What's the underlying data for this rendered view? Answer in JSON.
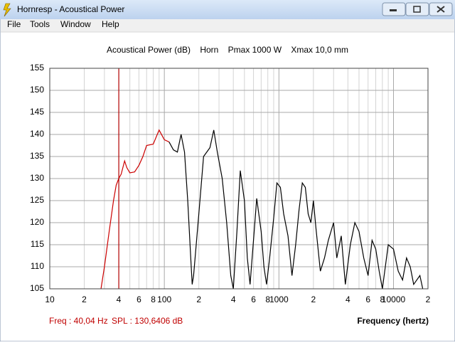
{
  "window": {
    "title": "Hornresp - Acoustical Power",
    "menu": [
      "File",
      "Tools",
      "Window",
      "Help"
    ]
  },
  "chart_data": {
    "type": "line",
    "title": "Acoustical Power (dB)    Horn    Pmax 1000 W    Xmax 10,0 mm",
    "x_label": "Frequency (hertz)",
    "x_log": true,
    "xlim": [
      10,
      20000
    ],
    "ylim": [
      105,
      155
    ],
    "xticks": [
      {
        "value": 10,
        "label": "10"
      },
      {
        "value": 20,
        "label": "2"
      },
      {
        "value": 40,
        "label": "4"
      },
      {
        "value": 60,
        "label": "6"
      },
      {
        "value": 80,
        "label": "8"
      },
      {
        "value": 100,
        "label": "100"
      },
      {
        "value": 200,
        "label": "2"
      },
      {
        "value": 400,
        "label": "4"
      },
      {
        "value": 600,
        "label": "6"
      },
      {
        "value": 800,
        "label": "8"
      },
      {
        "value": 1000,
        "label": "1000"
      },
      {
        "value": 2000,
        "label": "2"
      },
      {
        "value": 4000,
        "label": "4"
      },
      {
        "value": 6000,
        "label": "6"
      },
      {
        "value": 8000,
        "label": "8"
      },
      {
        "value": 10000,
        "label": "10000"
      },
      {
        "value": 20000,
        "label": "2"
      }
    ],
    "minor_xticks": [
      30,
      50,
      70,
      90,
      300,
      500,
      700,
      900,
      3000,
      5000,
      7000,
      9000
    ],
    "yticks": [
      105,
      110,
      115,
      120,
      125,
      130,
      135,
      140,
      145,
      150,
      155
    ],
    "grid": true,
    "cursor": {
      "x": 40.04,
      "color": "#b00000"
    },
    "readout": [
      "Freq : 40,04 Hz",
      "SPL : 130,6406 dB"
    ],
    "series": [
      {
        "color": "#cc0000",
        "x": [
          28,
          30,
          33,
          36,
          38,
          40,
          42,
          45,
          47,
          50,
          55,
          60,
          65,
          70,
          80,
          90,
          100,
          110
        ],
        "values": [
          105,
          110,
          118,
          125,
          128.5,
          130,
          131,
          134,
          132.5,
          131.3,
          131.5,
          133,
          135,
          137.5,
          137.8,
          141,
          138.8,
          138.3
        ]
      },
      {
        "color": "#000000",
        "x": [
          110,
          120,
          130,
          140,
          150,
          160,
          170,
          175,
          180,
          200,
          220,
          250,
          270,
          290,
          320,
          350,
          380,
          400,
          430,
          460,
          500,
          530,
          560,
          600,
          640,
          700,
          740,
          780,
          830,
          900,
          960,
          1030,
          1100,
          1200,
          1300,
          1400,
          1500,
          1600,
          1700,
          1800,
          1900,
          2000,
          2100,
          2300,
          2500,
          2700,
          3000,
          3200,
          3500,
          3800,
          4200,
          4600,
          5000,
          5500,
          6000,
          6500,
          7000,
          7500,
          8000,
          9000,
          10000,
          11000,
          12000,
          13000,
          14000,
          15000,
          17000,
          18000
        ],
        "values": [
          138.3,
          136.5,
          136,
          140,
          136,
          125,
          112,
          106,
          108,
          122,
          135,
          137,
          141,
          136,
          130,
          120,
          108,
          105,
          118,
          131.8,
          125,
          112,
          106,
          116,
          125.5,
          118,
          110,
          106,
          112,
          121,
          129,
          128,
          122,
          117,
          108,
          115,
          123,
          129,
          128,
          122,
          120,
          125,
          119,
          109,
          112,
          116,
          120,
          112,
          117,
          106,
          115,
          120,
          118,
          112,
          108,
          116,
          114,
          109,
          105,
          115,
          114,
          109,
          107,
          112,
          110,
          106,
          108,
          105
        ]
      }
    ]
  }
}
